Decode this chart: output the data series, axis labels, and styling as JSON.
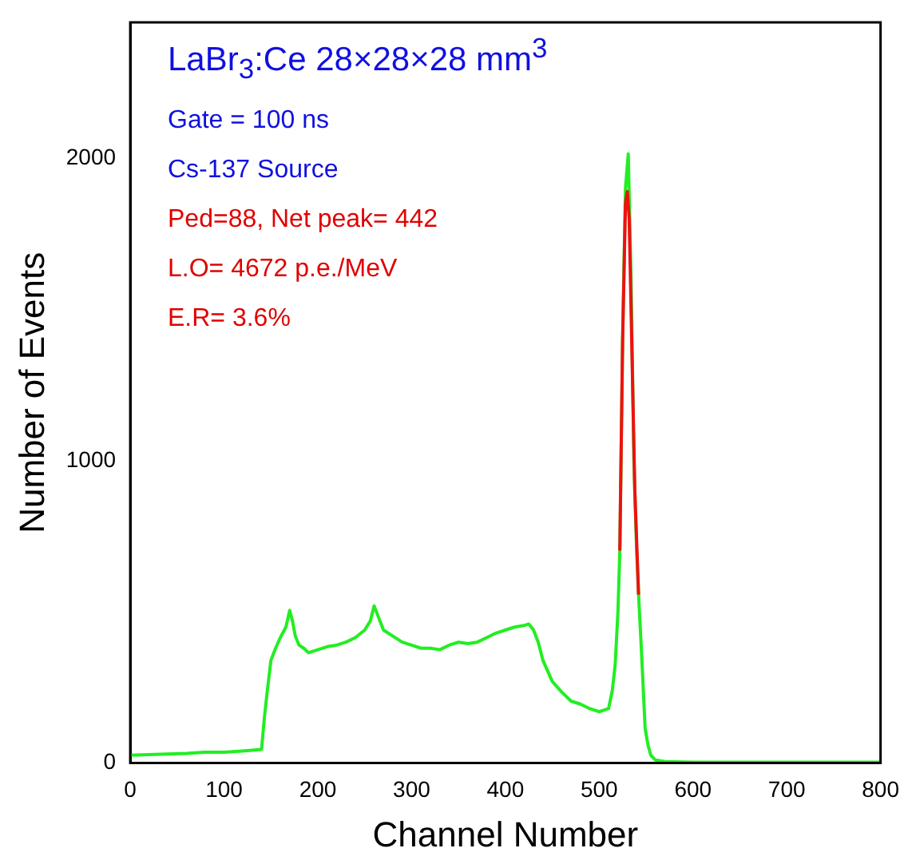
{
  "chart_data": {
    "type": "line",
    "xlabel": "Channel Number",
    "ylabel": "Number of Events",
    "xlim": [
      0,
      800
    ],
    "xticks": [
      0,
      100,
      200,
      300,
      400,
      500,
      600,
      700,
      800
    ],
    "ylim": [
      0,
      2450
    ],
    "yticks": [
      0,
      1000,
      2000
    ],
    "grid": false,
    "legend": false,
    "marker": "none",
    "annotations": [
      "LaBr$_{3}$:Ce   28×28×28 mm$^{3}$",
      "Gate = 100 ns",
      "Cs-137 Source",
      "Ped=88, Net peak= 442",
      "L.O= 4672 p.e./MeV",
      "E.R= 3.6%"
    ],
    "series": [
      {
        "color": "#22ee22",
        "x": [
          0,
          20,
          40,
          60,
          80,
          100,
          120,
          140,
          143,
          146,
          150,
          155,
          160,
          166,
          170,
          173,
          176,
          180,
          185,
          190,
          200,
          210,
          220,
          230,
          240,
          250,
          256,
          260,
          265,
          270,
          280,
          290,
          300,
          310,
          320,
          330,
          340,
          350,
          360,
          370,
          380,
          390,
          400,
          410,
          420,
          425,
          430,
          435,
          440,
          450,
          460,
          470,
          480,
          490,
          500,
          505,
          510,
          514,
          517,
          520,
          522,
          525,
          528,
          531,
          534,
          537,
          540,
          542,
          545,
          549,
          552,
          555,
          560,
          570,
          600,
          650,
          700,
          750,
          800
        ],
        "values": [
          26,
          28,
          30,
          32,
          36,
          36,
          40,
          45,
          150,
          235,
          340,
          380,
          415,
          450,
          505,
          470,
          420,
          390,
          380,
          365,
          375,
          385,
          390,
          400,
          415,
          440,
          470,
          520,
          480,
          440,
          420,
          400,
          390,
          380,
          380,
          375,
          390,
          400,
          395,
          400,
          415,
          430,
          440,
          450,
          455,
          460,
          440,
          400,
          340,
          270,
          235,
          205,
          195,
          180,
          170,
          175,
          180,
          240,
          323,
          500,
          700,
          1400,
          1900,
          2015,
          1600,
          1000,
          700,
          557,
          375,
          115,
          60,
          26,
          10,
          5,
          3,
          3,
          3,
          3,
          3
        ]
      },
      {
        "color": "#ee1111",
        "x": [
          522,
          525,
          528,
          530,
          532,
          535,
          538,
          542
        ],
        "values": [
          703,
          1400,
          1850,
          1890,
          1800,
          1350,
          900,
          557
        ]
      }
    ]
  }
}
